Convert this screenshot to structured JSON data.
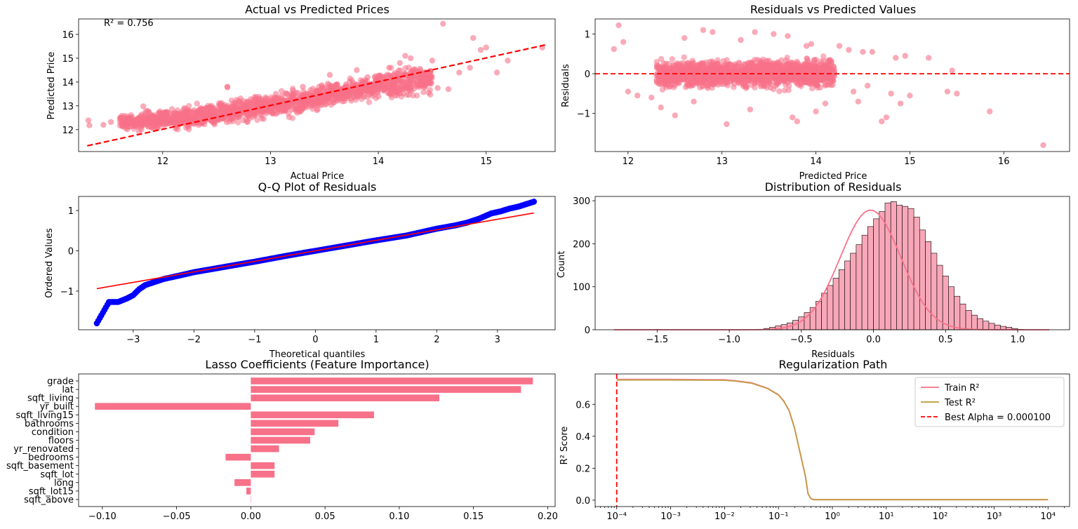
{
  "figure": {
    "background": "#ffffff"
  },
  "chart_data": [
    {
      "type": "scatter",
      "title": "Actual vs Predicted Prices",
      "xlabel": "Actual Price",
      "ylabel": "Predicted Price",
      "xlim": [
        11.22,
        15.64
      ],
      "ylim": [
        11.08,
        16.65
      ],
      "xticks": [
        12,
        13,
        14,
        15
      ],
      "yticks": [
        12,
        13,
        14,
        15,
        16
      ],
      "annotation": "R² = 0.756",
      "point_color": "#f77189",
      "reference_line": {
        "x": [
          11.3,
          15.55
        ],
        "y": [
          11.32,
          15.56
        ],
        "color": "#ff0000",
        "style": "dashed"
      },
      "points": [
        [
          11.31,
          12.39
        ],
        [
          11.32,
          12.18
        ],
        [
          11.45,
          12.2
        ],
        [
          11.52,
          12.32
        ],
        [
          11.62,
          12.35
        ],
        [
          11.75,
          12.35
        ],
        [
          11.78,
          11.93
        ],
        [
          11.82,
          12.98
        ],
        [
          11.85,
          12.6
        ],
        [
          11.9,
          12.5
        ],
        [
          11.95,
          12.1
        ],
        [
          12.05,
          12.7
        ],
        [
          12.1,
          12.3
        ],
        [
          12.15,
          12.5
        ],
        [
          12.2,
          12.9
        ],
        [
          12.3,
          12.4
        ],
        [
          12.35,
          12.9
        ],
        [
          12.45,
          13.0
        ],
        [
          12.5,
          12.4
        ],
        [
          12.55,
          12.75
        ],
        [
          12.6,
          13.78
        ],
        [
          12.7,
          12.9
        ],
        [
          12.75,
          13.0
        ],
        [
          12.85,
          12.6
        ],
        [
          12.9,
          13.3
        ],
        [
          12.95,
          13.2
        ],
        [
          13.0,
          12.8
        ],
        [
          13.05,
          13.5
        ],
        [
          13.1,
          13.1
        ],
        [
          13.2,
          13.4
        ],
        [
          13.25,
          12.85
        ],
        [
          13.3,
          13.8
        ],
        [
          13.35,
          13.5
        ],
        [
          13.4,
          13.1
        ],
        [
          13.45,
          13.8
        ],
        [
          13.5,
          13.3
        ],
        [
          13.55,
          14.3
        ],
        [
          13.6,
          13.6
        ],
        [
          13.7,
          13.9
        ],
        [
          13.75,
          13.3
        ],
        [
          13.8,
          14.5
        ],
        [
          13.85,
          13.8
        ],
        [
          13.9,
          14.2
        ],
        [
          14.0,
          14.0
        ],
        [
          14.1,
          14.6
        ],
        [
          14.15,
          13.9
        ],
        [
          14.2,
          14.8
        ],
        [
          14.3,
          14.4
        ],
        [
          14.4,
          14.2
        ],
        [
          14.5,
          14.9
        ],
        [
          14.6,
          16.45
        ],
        [
          14.65,
          13.7
        ],
        [
          14.75,
          14.4
        ],
        [
          14.88,
          15.85
        ],
        [
          14.95,
          15.35
        ],
        [
          15.0,
          15.45
        ],
        [
          15.2,
          14.9
        ],
        [
          15.52,
          15.45
        ],
        [
          12.6,
          13.8
        ],
        [
          13.1,
          13.4
        ],
        [
          14.3,
          15.0
        ],
        [
          14.85,
          14.6
        ],
        [
          15.1,
          14.4
        ],
        [
          13.85,
          14.0
        ],
        [
          12.25,
          12.2
        ],
        [
          13.0,
          13.0
        ],
        [
          14.55,
          13.75
        ],
        [
          14.25,
          15.1
        ]
      ],
      "cloud": [
        {
          "x0": 11.6,
          "x1": 12.5,
          "ylo0": 11.9,
          "yhi0": 12.7,
          "ylo1": 12.0,
          "yhi1": 13.2
        },
        {
          "x0": 12.5,
          "x1": 13.5,
          "ylo0": 12.1,
          "yhi0": 13.2,
          "ylo1": 12.7,
          "yhi1": 14.0
        },
        {
          "x0": 13.5,
          "x1": 14.5,
          "ylo0": 12.9,
          "yhi0": 14.0,
          "ylo1": 13.4,
          "yhi1": 14.9
        }
      ]
    },
    {
      "type": "scatter",
      "title": "Residuals vs Predicted Values",
      "xlabel": "Predicted Price",
      "ylabel": "Residuals",
      "xlim": [
        11.65,
        16.7
      ],
      "ylim": [
        -1.96,
        1.38
      ],
      "xticks": [
        12,
        13,
        14,
        15,
        16
      ],
      "yticks": [
        -1,
        0,
        1
      ],
      "ytick_labels": [
        "−1",
        "0",
        "1"
      ],
      "point_color": "#f77189",
      "reference_line": {
        "y": 0,
        "color": "#ff0000",
        "style": "dashed"
      },
      "points": [
        [
          11.9,
          1.22
        ],
        [
          11.85,
          0.62
        ],
        [
          11.95,
          0.8
        ],
        [
          12.0,
          -0.45
        ],
        [
          12.1,
          -0.55
        ],
        [
          12.25,
          -0.6
        ],
        [
          12.35,
          -0.85
        ],
        [
          12.5,
          -1.05
        ],
        [
          12.6,
          0.9
        ],
        [
          12.8,
          1.1
        ],
        [
          12.9,
          1.05
        ],
        [
          13.05,
          -1.27
        ],
        [
          13.3,
          -0.9
        ],
        [
          13.35,
          1.05
        ],
        [
          13.55,
          1.0
        ],
        [
          13.7,
          0.95
        ],
        [
          13.75,
          -1.1
        ],
        [
          13.8,
          -1.2
        ],
        [
          13.9,
          0.7
        ],
        [
          14.0,
          -0.95
        ],
        [
          14.1,
          -0.75
        ],
        [
          14.25,
          0.7
        ],
        [
          14.35,
          0.6
        ],
        [
          14.45,
          -0.7
        ],
        [
          14.5,
          0.55
        ],
        [
          14.6,
          0.55
        ],
        [
          14.7,
          -1.2
        ],
        [
          14.75,
          -1.1
        ],
        [
          14.8,
          -0.5
        ],
        [
          14.85,
          0.4
        ],
        [
          14.9,
          -0.75
        ],
        [
          15.0,
          -0.55
        ],
        [
          15.2,
          0.4
        ],
        [
          15.4,
          -0.45
        ],
        [
          15.45,
          0.08
        ],
        [
          15.5,
          -0.5
        ],
        [
          15.85,
          -0.95
        ],
        [
          16.42,
          -1.8
        ],
        [
          13.2,
          0.85
        ],
        [
          12.7,
          -0.7
        ],
        [
          14.15,
          0.35
        ],
        [
          14.95,
          0.45
        ],
        [
          14.55,
          -0.3
        ],
        [
          14.4,
          -0.45
        ],
        [
          13.95,
          0.75
        ]
      ],
      "cloud": [
        {
          "x0": 12.3,
          "x1": 14.2,
          "ylo0": -0.6,
          "yhi0": 0.6,
          "ylo1": -0.6,
          "yhi1": 0.6
        }
      ]
    },
    {
      "type": "scatter",
      "title": "Q-Q Plot of Residuals",
      "xlabel": "Theoretical quantiles",
      "ylabel": "Ordered Values",
      "xlim": [
        -3.9,
        3.95
      ],
      "ylim": [
        -1.96,
        1.35
      ],
      "xticks": [
        -3,
        -2,
        -1,
        0,
        1,
        2,
        3
      ],
      "xtick_labels": [
        "−3",
        "−2",
        "−1",
        "0",
        "1",
        "2",
        "3"
      ],
      "yticks": [
        -1,
        0,
        1
      ],
      "ytick_labels": [
        "−1",
        "0",
        "1"
      ],
      "point_color": "#0000ff",
      "fit_line": {
        "x": [
          -3.6,
          3.6
        ],
        "y": [
          -0.94,
          0.94
        ],
        "color": "#ff0000"
      },
      "curve": [
        [
          -3.6,
          -1.8
        ],
        [
          -3.4,
          -1.27
        ],
        [
          -3.25,
          -1.27
        ],
        [
          -3.1,
          -1.18
        ],
        [
          -3.0,
          -1.1
        ],
        [
          -2.9,
          -0.95
        ],
        [
          -2.8,
          -0.85
        ],
        [
          -2.7,
          -0.8
        ],
        [
          -2.5,
          -0.7
        ],
        [
          -2.2,
          -0.6
        ],
        [
          -2.0,
          -0.53
        ],
        [
          -1.5,
          -0.4
        ],
        [
          -1.0,
          -0.27
        ],
        [
          -0.5,
          -0.13
        ],
        [
          0,
          0.0
        ],
        [
          0.5,
          0.13
        ],
        [
          1.0,
          0.26
        ],
        [
          1.5,
          0.38
        ],
        [
          2.0,
          0.55
        ],
        [
          2.3,
          0.63
        ],
        [
          2.5,
          0.7
        ],
        [
          2.7,
          0.8
        ],
        [
          2.9,
          0.93
        ],
        [
          3.05,
          0.98
        ],
        [
          3.2,
          1.05
        ],
        [
          3.35,
          1.1
        ],
        [
          3.6,
          1.22
        ]
      ]
    },
    {
      "type": "bar",
      "title": "Distribution of Residuals",
      "xlabel": "Residuals",
      "ylabel": "Count",
      "xlim": [
        -1.93,
        1.36
      ],
      "ylim": [
        0,
        310
      ],
      "xticks": [
        -1.5,
        -1.0,
        -0.5,
        0.0,
        0.5,
        1.0
      ],
      "xtick_labels": [
        "−1.5",
        "−1.0",
        "−0.5",
        "0.0",
        "0.5",
        "1.0"
      ],
      "yticks": [
        0,
        100,
        200,
        300
      ],
      "bar_color": "#f8a7b8",
      "kde_color": "#f77189",
      "bin_start": -0.8,
      "bin_width": 0.04,
      "counts": [
        1,
        3,
        6,
        9,
        12,
        16,
        22,
        30,
        40,
        52,
        66,
        85,
        103,
        120,
        140,
        160,
        178,
        198,
        220,
        240,
        258,
        275,
        295,
        298,
        290,
        287,
        282,
        262,
        232,
        205,
        178,
        150,
        125,
        100,
        78,
        60,
        45,
        34,
        26,
        20,
        15,
        11,
        8,
        6,
        3,
        1
      ]
    },
    {
      "type": "bar",
      "title": "Lasso Coefficients (Feature Importance)",
      "categories": [
        "grade",
        "lat",
        "sqft_living",
        "yr_built",
        "sqft_living15",
        "bathrooms",
        "condition",
        "floors",
        "yr_renovated",
        "bedrooms",
        "sqft_basement",
        "sqft_lot",
        "long",
        "sqft_lot15",
        "sqft_above"
      ],
      "values": [
        0.19,
        0.182,
        0.127,
        -0.105,
        0.083,
        0.059,
        0.043,
        0.04,
        0.019,
        -0.017,
        0.016,
        0.016,
        -0.011,
        -0.003,
        0.0
      ],
      "xlim": [
        -0.116,
        0.205
      ],
      "xticks": [
        -0.1,
        -0.05,
        0.0,
        0.05,
        0.1,
        0.15,
        0.2
      ],
      "xtick_labels": [
        "−0.10",
        "−0.05",
        "0.00",
        "0.05",
        "0.10",
        "0.15",
        "0.20"
      ],
      "bar_color": "#f77189",
      "orientation": "horizontal"
    },
    {
      "type": "line",
      "title": "Regularization Path",
      "xlabel": "",
      "ylabel": "R² Score",
      "xscale": "log",
      "xlim_log10": [
        -4.4,
        4.4
      ],
      "ylim": [
        -0.04,
        0.79
      ],
      "xtick_exponents": [
        -4,
        -3,
        -2,
        -1,
        0,
        1,
        2,
        3,
        4
      ],
      "xtick_labels": [
        "10⁻⁴",
        "10⁻³",
        "10⁻²",
        "10⁻¹",
        "10⁰",
        "10¹",
        "10²",
        "10³",
        "10⁴"
      ],
      "yticks": [
        0.0,
        0.2,
        0.4,
        0.6
      ],
      "ytick_labels": [
        "0.0",
        "0.2",
        "0.4",
        "0.6"
      ],
      "series": [
        {
          "name": "Train R²",
          "color": "#f77189",
          "points": [
            [
              -4,
              0.756
            ],
            [
              -3,
              0.756
            ],
            [
              -2,
              0.754
            ],
            [
              -1.8,
              0.748
            ],
            [
              -1.5,
              0.735
            ],
            [
              -1.2,
              0.7
            ],
            [
              -1.0,
              0.66
            ],
            [
              -0.9,
              0.62
            ],
            [
              -0.8,
              0.56
            ],
            [
              -0.7,
              0.45
            ],
            [
              -0.6,
              0.3
            ],
            [
              -0.5,
              0.15
            ],
            [
              -0.45,
              0.04
            ],
            [
              -0.4,
              0.01
            ],
            [
              -0.35,
              0.003
            ],
            [
              0,
              0.003
            ],
            [
              2,
              0.003
            ],
            [
              4,
              0.003
            ]
          ]
        },
        {
          "name": "Test R²",
          "color": "#bb9832",
          "points": [
            [
              -4,
              0.752
            ],
            [
              -3,
              0.752
            ],
            [
              -2,
              0.75
            ],
            [
              -1.8,
              0.745
            ],
            [
              -1.5,
              0.732
            ],
            [
              -1.2,
              0.698
            ],
            [
              -1.0,
              0.658
            ],
            [
              -0.9,
              0.618
            ],
            [
              -0.8,
              0.558
            ],
            [
              -0.7,
              0.448
            ],
            [
              -0.6,
              0.298
            ],
            [
              -0.5,
              0.148
            ],
            [
              -0.45,
              0.04
            ],
            [
              -0.4,
              0.01
            ],
            [
              -0.35,
              0.003
            ],
            [
              0,
              0.003
            ],
            [
              2,
              0.003
            ],
            [
              4,
              0.003
            ]
          ]
        }
      ],
      "best_alpha": {
        "label": "Best Alpha = 0.000100",
        "log10": -4,
        "color": "#ff0000",
        "style": "dashed"
      },
      "legend": "top-right"
    }
  ]
}
